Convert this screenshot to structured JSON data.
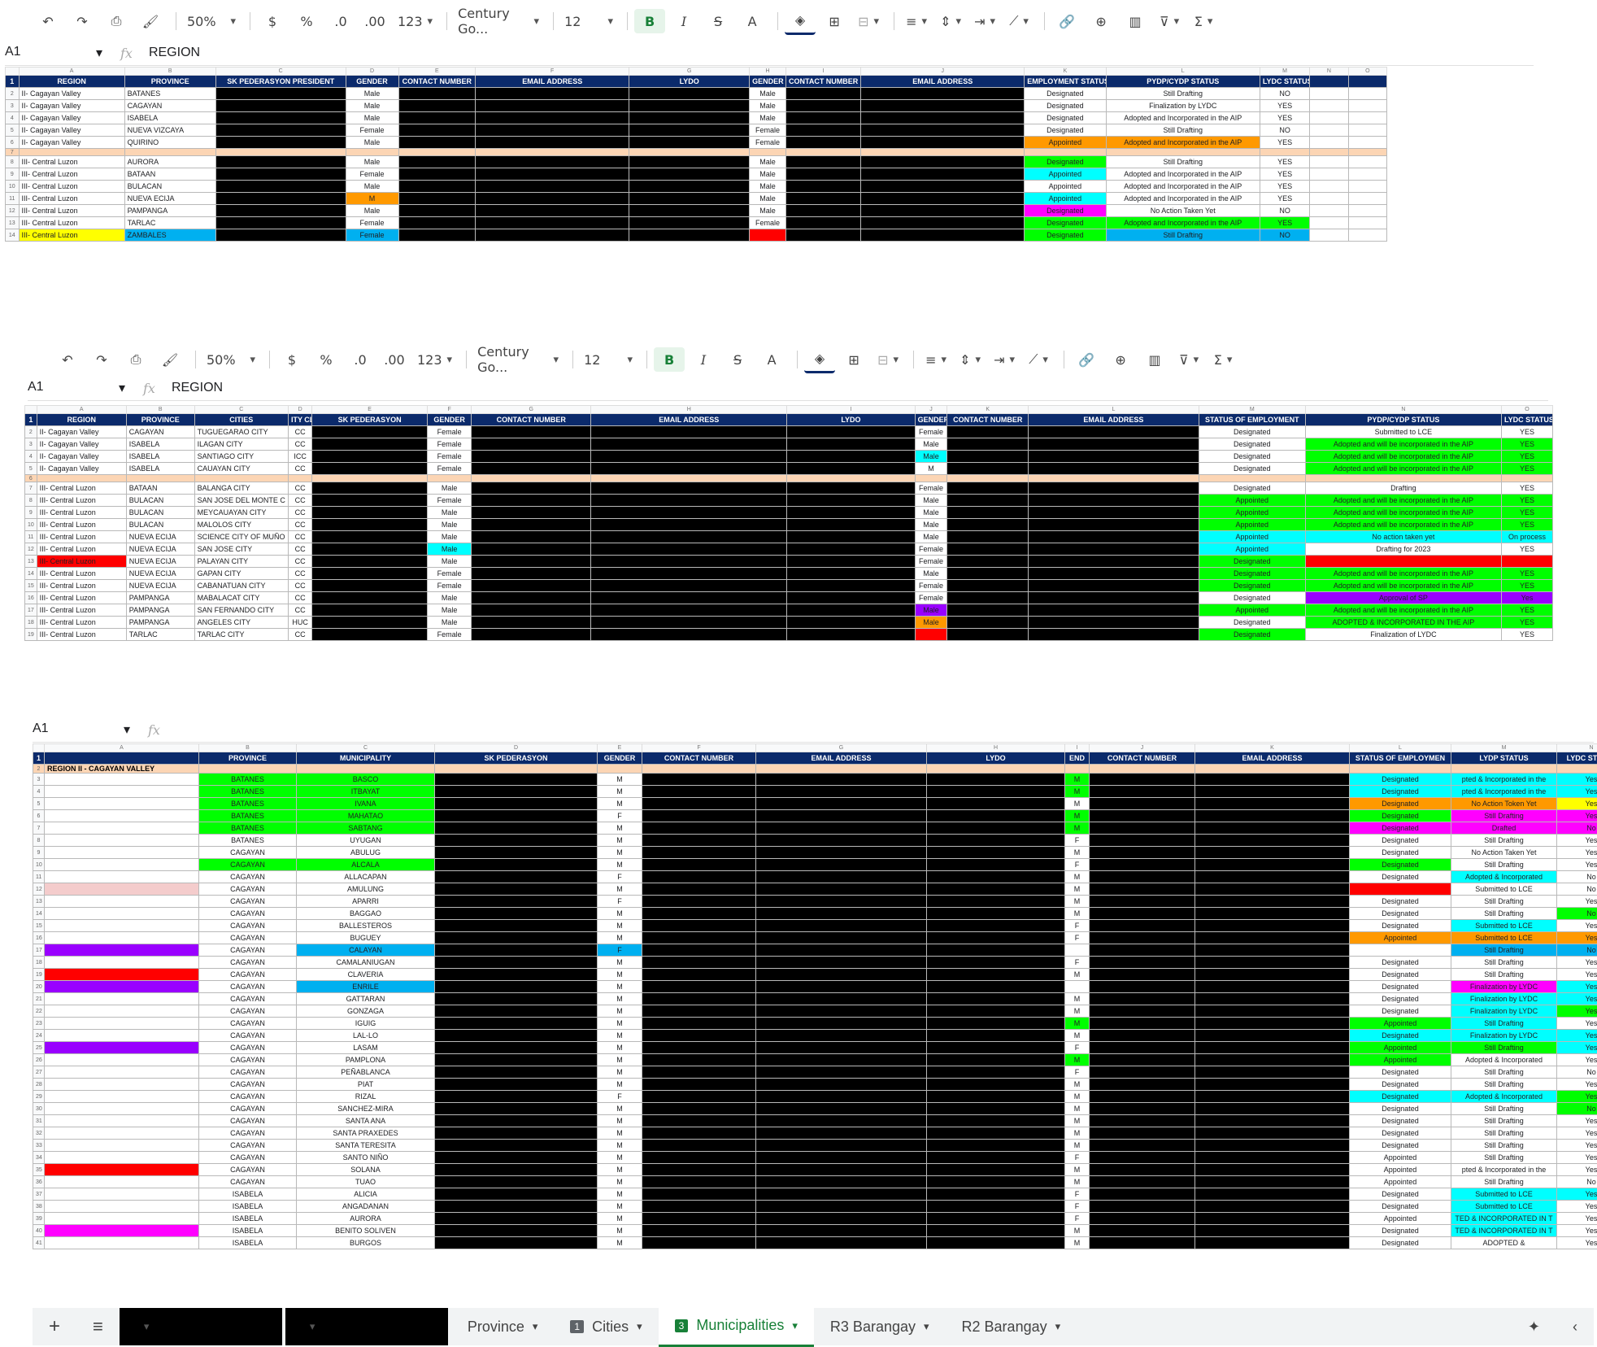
{
  "toolbar": {
    "zoom": "50%",
    "currency": "$",
    "percent": "%",
    "dec_less": ".0",
    "dec_more": ".00",
    "number_format": "123",
    "font": "Century Go...",
    "font_size": "12",
    "bold": "B",
    "italic": "I",
    "strike": "S",
    "text_color": "A"
  },
  "formula_bar": {
    "cell": "A1",
    "fx": "fx",
    "value": "REGION"
  },
  "formula_bar3": {
    "cell": "A1",
    "fx": "fx",
    "value": ""
  },
  "sheet1": {
    "cols": [
      "A",
      "B",
      "C",
      "D",
      "E",
      "F",
      "G",
      "H",
      "I",
      "J",
      "K",
      "L",
      "M",
      "N",
      "O"
    ],
    "headers": [
      "REGION",
      "PROVINCE",
      "SK PEDERASYON PRESIDENT",
      "GENDER",
      "CONTACT NUMBER",
      "EMAIL ADDRESS",
      "LYDO",
      "GENDER",
      "CONTACT NUMBER",
      "EMAIL ADDRESS",
      "EMPLOYMENT STATUS",
      "PYDP/CYDP STATUS",
      "LYDC STATUS"
    ],
    "rows": [
      {
        "n": "2",
        "region": "II- Cagayan Valley",
        "province": "BATANES",
        "g1": "Male",
        "g2": "Male",
        "emp": "Designated",
        "pydp": "Still Drafting",
        "lydc": "NO"
      },
      {
        "n": "3",
        "region": "II- Cagayan Valley",
        "province": "CAGAYAN",
        "g1": "Male",
        "g2": "Male",
        "emp": "Designated",
        "pydp": "Finalization by LYDC",
        "lydc": "YES"
      },
      {
        "n": "4",
        "region": "II- Cagayan Valley",
        "province": "ISABELA",
        "g1": "Male",
        "g2": "Male",
        "emp": "Designated",
        "pydp": "Adopted and Incorporated in the AIP",
        "lydc": "YES"
      },
      {
        "n": "5",
        "region": "II- Cagayan Valley",
        "province": "NUEVA VIZCAYA",
        "g1": "Female",
        "g2": "Female",
        "emp": "Designated",
        "pydp": "Still Drafting",
        "lydc": "NO"
      },
      {
        "n": "6",
        "region": "II- Cagayan Valley",
        "province": "QUIRINO",
        "g1": "Male",
        "g2": "Female",
        "emp": "Appointed",
        "pydp": "Adopted and Incorporated in the AIP",
        "lydc": "YES"
      },
      {
        "n": "8",
        "region": "III- Central Luzon",
        "province": "AURORA",
        "g1": "Male",
        "g2": "Male",
        "emp": "Designated",
        "pydp": "Still Drafting",
        "lydc": "YES"
      },
      {
        "n": "9",
        "region": "III- Central Luzon",
        "province": "BATAAN",
        "g1": "Female",
        "g2": "Male",
        "emp": "Appointed",
        "pydp": "Adopted and Incorporated in the AIP",
        "lydc": "YES"
      },
      {
        "n": "10",
        "region": "III- Central Luzon",
        "province": "BULACAN",
        "g1": "Male",
        "g2": "Male",
        "emp": "Appointed",
        "pydp": "Adopted and Incorporated in the AIP",
        "lydc": "YES"
      },
      {
        "n": "11",
        "region": "III- Central Luzon",
        "province": "NUEVA ECIJA",
        "g1": "M",
        "g2": "Male",
        "emp": "Appointed",
        "pydp": "Adopted and Incorporated in the AIP",
        "lydc": "YES"
      },
      {
        "n": "12",
        "region": "III- Central Luzon",
        "province": "PAMPANGA",
        "g1": "Male",
        "g2": "Male",
        "emp": "Designated",
        "pydp": "No Action Taken Yet",
        "lydc": "NO"
      },
      {
        "n": "13",
        "region": "III- Central Luzon",
        "province": "TARLAC",
        "g1": "Female",
        "g2": "Female",
        "emp": "Designated",
        "pydp": "Adopted and Incorporated in the AIP",
        "lydc": "YES"
      },
      {
        "n": "14",
        "region": "III- Central Luzon",
        "province": "ZAMBALES",
        "g1": "Female",
        "g2": "",
        "emp": "Designated",
        "pydp": "Still Drafting",
        "lydc": "NO"
      }
    ]
  },
  "sheet2": {
    "cols": [
      "A",
      "B",
      "C",
      "D",
      "E",
      "F",
      "G",
      "H",
      "I",
      "J",
      "K",
      "L",
      "M",
      "N",
      "O"
    ],
    "headers": [
      "REGION",
      "PROVINCE",
      "CITIES",
      "ITY CLAS",
      "SK PEDERASYON",
      "GENDER",
      "CONTACT NUMBER",
      "EMAIL ADDRESS",
      "LYDO",
      "GENDER",
      "CONTACT NUMBER",
      "EMAIL ADDRESS",
      "STATUS OF EMPLOYMENT",
      "PYDP/CYDP STATUS",
      "LYDC STATUS"
    ],
    "rows": [
      {
        "n": "2",
        "region": "II- Cagayan Valley",
        "province": "CAGAYAN",
        "city": "TUGUEGARAO CITY",
        "cls": "CC",
        "g1": "Female",
        "g2": "Female",
        "emp": "Designated",
        "pydp": "Submitted to LCE",
        "lydc": "YES"
      },
      {
        "n": "3",
        "region": "II- Cagayan Valley",
        "province": "ISABELA",
        "city": "ILAGAN CITY",
        "cls": "CC",
        "g1": "Female",
        "g2": "Male",
        "emp": "Designated",
        "pydp": "Adopted and will be incorporated in the AIP",
        "lydc": "YES"
      },
      {
        "n": "4",
        "region": "II- Cagayan Valley",
        "province": "ISABELA",
        "city": "SANTIAGO CITY",
        "cls": "ICC",
        "g1": "Female",
        "g2": "Male",
        "emp": "Designated",
        "pydp": "Adopted and will be incorporated in the AIP",
        "lydc": "YES"
      },
      {
        "n": "5",
        "region": "II- Cagayan Valley",
        "province": "ISABELA",
        "city": "CAUAYAN CITY",
        "cls": "CC",
        "g1": "Female",
        "g2": "M",
        "emp": "Designated",
        "pydp": "Adopted and will be incorporated in the AIP",
        "lydc": "YES"
      },
      {
        "n": "7",
        "region": "III- Central Luzon",
        "province": "BATAAN",
        "city": "BALANGA CITY",
        "cls": "CC",
        "g1": "Male",
        "g2": "Female",
        "emp": "Designated",
        "pydp": "Drafting",
        "lydc": "YES"
      },
      {
        "n": "8",
        "region": "III- Central Luzon",
        "province": "BULACAN",
        "city": "SAN JOSE DEL MONTE C",
        "cls": "CC",
        "g1": "Female",
        "g2": "Male",
        "emp": "Appointed",
        "pydp": "Adopted and will be incorporated in the AIP",
        "lydc": "YES"
      },
      {
        "n": "9",
        "region": "III- Central Luzon",
        "province": "BULACAN",
        "city": "MEYCAUAYAN CITY",
        "cls": "CC",
        "g1": "Male",
        "g2": "Male",
        "emp": "Appointed",
        "pydp": "Adopted and will be incorporated in the AIP",
        "lydc": "YES"
      },
      {
        "n": "10",
        "region": "III- Central Luzon",
        "province": "BULACAN",
        "city": "MALOLOS CITY",
        "cls": "CC",
        "g1": "Male",
        "g2": "Male",
        "emp": "Appointed",
        "pydp": "Adopted and will be incorporated in the AIP",
        "lydc": "YES"
      },
      {
        "n": "11",
        "region": "III- Central Luzon",
        "province": "NUEVA ECIJA",
        "city": "SCIENCE CITY OF MUÑO",
        "cls": "CC",
        "g1": "Male",
        "g2": "Male",
        "emp": "Appointed",
        "pydp": "No action taken yet",
        "lydc": "On process"
      },
      {
        "n": "12",
        "region": "III- Central Luzon",
        "province": "NUEVA ECIJA",
        "city": "SAN JOSE CITY",
        "cls": "CC",
        "g1": "Male",
        "g2": "Female",
        "emp": "Appointed",
        "pydp": "Drafting for 2023",
        "lydc": "YES"
      },
      {
        "n": "13",
        "region": "III- Central Luzon",
        "province": "NUEVA ECIJA",
        "city": "PALAYAN CITY",
        "cls": "CC",
        "g1": "Male",
        "g2": "Female",
        "emp": "Designated",
        "pydp": "",
        "lydc": ""
      },
      {
        "n": "14",
        "region": "III- Central Luzon",
        "province": "NUEVA ECIJA",
        "city": "GAPAN CITY",
        "cls": "CC",
        "g1": "Female",
        "g2": "Male",
        "emp": "Designated",
        "pydp": "Adopted and will be incorporated in the AIP",
        "lydc": "YES"
      },
      {
        "n": "15",
        "region": "III- Central Luzon",
        "province": "NUEVA ECIJA",
        "city": "CABANATUAN CITY",
        "cls": "CC",
        "g1": "Female",
        "g2": "Female",
        "emp": "Designated",
        "pydp": "Adopted and will be incorporated in the AIP",
        "lydc": "YES"
      },
      {
        "n": "16",
        "region": "III- Central Luzon",
        "province": "PAMPANGA",
        "city": "MABALACAT CITY",
        "cls": "CC",
        "g1": "Male",
        "g2": "Female",
        "emp": "Designated",
        "pydp": "Approval of SP",
        "lydc": "Yes"
      },
      {
        "n": "17",
        "region": "III- Central Luzon",
        "province": "PAMPANGA",
        "city": "SAN FERNANDO CITY",
        "cls": "CC",
        "g1": "Male",
        "g2": "Male",
        "emp": "Appointed",
        "pydp": "Adopted and will be incorporated in the AIP",
        "lydc": "YES"
      },
      {
        "n": "18",
        "region": "III- Central Luzon",
        "province": "PAMPANGA",
        "city": "ANGELES CITY",
        "cls": "HUC",
        "g1": "Male",
        "g2": "Male",
        "emp": "Designated",
        "pydp": "ADOPTED & INCORPORATED IN THE AIP",
        "lydc": "YES"
      },
      {
        "n": "19",
        "region": "III- Central Luzon",
        "province": "TARLAC",
        "city": "TARLAC CITY",
        "cls": "CC",
        "g1": "Female",
        "g2": "",
        "emp": "Designated",
        "pydp": "Finalization of LYDC",
        "lydc": "YES"
      }
    ]
  },
  "sheet3": {
    "cols": [
      "A",
      "B",
      "C",
      "D",
      "E",
      "F",
      "G",
      "H",
      "I",
      "J",
      "K",
      "L",
      "M",
      "N"
    ],
    "headers": [
      "",
      "PROVINCE",
      "MUNICIPALITY",
      "SK PEDERASYON",
      "GENDER",
      "CONTACT NUMBER",
      "EMAIL ADDRESS",
      "LYDO",
      "END",
      "CONTACT NUMBER",
      "EMAIL ADDRESS",
      "STATUS OF EMPLOYMEN",
      "LYDP STATUS",
      "LYDC STATUS"
    ],
    "region_label": "REGION II - CAGAYAN VALLEY",
    "rows": [
      {
        "n": "3",
        "p": "BATANES",
        "m": "BASCO",
        "g1": "M",
        "g2": "M",
        "emp": "Designated",
        "lydp": "pted & Incorporated in the",
        "lydc": "Yes"
      },
      {
        "n": "4",
        "p": "BATANES",
        "m": "ITBAYAT",
        "g1": "M",
        "g2": "M",
        "emp": "Designated",
        "lydp": "pted & Incorporated in the",
        "lydc": "Yes"
      },
      {
        "n": "5",
        "p": "BATANES",
        "m": "IVANA",
        "g1": "M",
        "g2": "M",
        "emp": "Designated",
        "lydp": "No Action Token Yet",
        "lydc": "Yes"
      },
      {
        "n": "6",
        "p": "BATANES",
        "m": "MAHATAO",
        "g1": "F",
        "g2": "M",
        "emp": "Designated",
        "lydp": "Still Drafting",
        "lydc": "Yes"
      },
      {
        "n": "7",
        "p": "BATANES",
        "m": "SABTANG",
        "g1": "M",
        "g2": "M",
        "emp": "Designated",
        "lydp": "Drafted",
        "lydc": "No"
      },
      {
        "n": "8",
        "p": "BATANES",
        "m": "UYUGAN",
        "g1": "M",
        "g2": "F",
        "emp": "Designated",
        "lydp": "Still Drafting",
        "lydc": "Yes"
      },
      {
        "n": "9",
        "p": "CAGAYAN",
        "m": "ABULUG",
        "g1": "M",
        "g2": "M",
        "emp": "Designated",
        "lydp": "No Action Taken Yet",
        "lydc": "Yes"
      },
      {
        "n": "10",
        "p": "CAGAYAN",
        "m": "ALCALA",
        "g1": "M",
        "g2": "F",
        "emp": "Designated",
        "lydp": "Still Drafting",
        "lydc": "Yes"
      },
      {
        "n": "11",
        "p": "CAGAYAN",
        "m": "ALLACAPAN",
        "g1": "F",
        "g2": "M",
        "emp": "Designated",
        "lydp": "Adopted & Incorporated",
        "lydc": "No"
      },
      {
        "n": "12",
        "p": "CAGAYAN",
        "m": "AMULUNG",
        "g1": "M",
        "g2": "M",
        "emp": "",
        "lydp": "Submitted to LCE",
        "lydc": "No"
      },
      {
        "n": "13",
        "p": "CAGAYAN",
        "m": "APARRI",
        "g1": "F",
        "g2": "M",
        "emp": "Designated",
        "lydp": "Still Drafting",
        "lydc": "Yes"
      },
      {
        "n": "14",
        "p": "CAGAYAN",
        "m": "BAGGAO",
        "g1": "M",
        "g2": "M",
        "emp": "Designated",
        "lydp": "Still Drafting",
        "lydc": "No"
      },
      {
        "n": "15",
        "p": "CAGAYAN",
        "m": "BALLESTEROS",
        "g1": "M",
        "g2": "F",
        "emp": "Designated",
        "lydp": "Submitted to LCE",
        "lydc": "Yes"
      },
      {
        "n": "16",
        "p": "CAGAYAN",
        "m": "BUGUEY",
        "g1": "M",
        "g2": "F",
        "emp": "Appointed",
        "lydp": "Submitted to LCE",
        "lydc": "Yes"
      },
      {
        "n": "17",
        "p": "CAGAYAN",
        "m": "CALAYAN",
        "g1": "F",
        "g2": "",
        "emp": "",
        "lydp": "Still Drafting",
        "lydc": "No"
      },
      {
        "n": "18",
        "p": "CAGAYAN",
        "m": "CAMALANIUGAN",
        "g1": "M",
        "g2": "F",
        "emp": "Designated",
        "lydp": "Still Drafting",
        "lydc": "Yes"
      },
      {
        "n": "19",
        "p": "CAGAYAN",
        "m": "CLAVERIA",
        "g1": "M",
        "g2": "M",
        "emp": "Designated",
        "lydp": "Still Drafting",
        "lydc": "Yes"
      },
      {
        "n": "20",
        "p": "CAGAYAN",
        "m": "ENRILE",
        "g1": "M",
        "g2": "",
        "emp": "Designated",
        "lydp": "Finalization by LYDC",
        "lydc": "Yes"
      },
      {
        "n": "21",
        "p": "CAGAYAN",
        "m": "GATTARAN",
        "g1": "M",
        "g2": "M",
        "emp": "Designated",
        "lydp": "Finalization by LYDC",
        "lydc": "Yes"
      },
      {
        "n": "22",
        "p": "CAGAYAN",
        "m": "GONZAGA",
        "g1": "M",
        "g2": "M",
        "emp": "Designated",
        "lydp": "Finalization by LYDC",
        "lydc": "Yes"
      },
      {
        "n": "23",
        "p": "CAGAYAN",
        "m": "IGUIG",
        "g1": "M",
        "g2": "M",
        "emp": "Appointed",
        "lydp": "Still Drafting",
        "lydc": "Yes"
      },
      {
        "n": "24",
        "p": "CAGAYAN",
        "m": "LAL-LO",
        "g1": "M",
        "g2": "M",
        "emp": "Designated",
        "lydp": "Finalization by LYDC",
        "lydc": "Yes"
      },
      {
        "n": "25",
        "p": "CAGAYAN",
        "m": "LASAM",
        "g1": "M",
        "g2": "F",
        "emp": "Appointed",
        "lydp": "Still Drafting",
        "lydc": "Yes"
      },
      {
        "n": "26",
        "p": "CAGAYAN",
        "m": "PAMPLONA",
        "g1": "M",
        "g2": "M",
        "emp": "Appointed",
        "lydp": "Adopted & Incorporated",
        "lydc": "Yes"
      },
      {
        "n": "27",
        "p": "CAGAYAN",
        "m": "PEÑABLANCA",
        "g1": "M",
        "g2": "F",
        "emp": "Designated",
        "lydp": "Still Drafting",
        "lydc": "No"
      },
      {
        "n": "28",
        "p": "CAGAYAN",
        "m": "PIAT",
        "g1": "M",
        "g2": "M",
        "emp": "Designated",
        "lydp": "Still Drafting",
        "lydc": "Yes"
      },
      {
        "n": "29",
        "p": "CAGAYAN",
        "m": "RIZAL",
        "g1": "F",
        "g2": "M",
        "emp": "Designated",
        "lydp": "Adopted & Incorporated",
        "lydc": "Yes"
      },
      {
        "n": "30",
        "p": "CAGAYAN",
        "m": "SANCHEZ-MIRA",
        "g1": "M",
        "g2": "M",
        "emp": "Designated",
        "lydp": "Still Drafting",
        "lydc": "No"
      },
      {
        "n": "31",
        "p": "CAGAYAN",
        "m": "SANTA ANA",
        "g1": "M",
        "g2": "M",
        "emp": "Designated",
        "lydp": "Still Drafting",
        "lydc": "Yes"
      },
      {
        "n": "32",
        "p": "CAGAYAN",
        "m": "SANTA PRAXEDES",
        "g1": "M",
        "g2": "M",
        "emp": "Designated",
        "lydp": "Still Drafting",
        "lydc": "Yes"
      },
      {
        "n": "33",
        "p": "CAGAYAN",
        "m": "SANTA TERESITA",
        "g1": "M",
        "g2": "M",
        "emp": "Designated",
        "lydp": "Still Drafting",
        "lydc": "Yes"
      },
      {
        "n": "34",
        "p": "CAGAYAN",
        "m": "SANTO NIÑO",
        "g1": "M",
        "g2": "F",
        "emp": "Appointed",
        "lydp": "Still Drafting",
        "lydc": "Yes"
      },
      {
        "n": "35",
        "p": "CAGAYAN",
        "m": "SOLANA",
        "g1": "M",
        "g2": "M",
        "emp": "Appointed",
        "lydp": "pted & Incorporated in the",
        "lydc": "Yes"
      },
      {
        "n": "36",
        "p": "CAGAYAN",
        "m": "TUAO",
        "g1": "M",
        "g2": "M",
        "emp": "Appointed",
        "lydp": "Still Drafting",
        "lydc": "No"
      },
      {
        "n": "37",
        "p": "ISABELA",
        "m": "ALICIA",
        "g1": "M",
        "g2": "F",
        "emp": "Designated",
        "lydp": "Submitted to LCE",
        "lydc": "Yes"
      },
      {
        "n": "38",
        "p": "ISABELA",
        "m": "ANGADANAN",
        "g1": "M",
        "g2": "F",
        "emp": "Designated",
        "lydp": "Submitted to LCE",
        "lydc": "Yes"
      },
      {
        "n": "39",
        "p": "ISABELA",
        "m": "AURORA",
        "g1": "M",
        "g2": "F",
        "emp": "Appointed",
        "lydp": "TED & INCORPORATED IN T",
        "lydc": "Yes"
      },
      {
        "n": "40",
        "p": "ISABELA",
        "m": "BENITO SOLIVEN",
        "g1": "M",
        "g2": "M",
        "emp": "Designated",
        "lydp": "TED & INCORPORATED IN T",
        "lydc": "Yes"
      },
      {
        "n": "41",
        "p": "ISABELA",
        "m": "BURGOS",
        "g1": "M",
        "g2": "M",
        "emp": "Designated",
        "lydp": "ADOPTED &",
        "lydc": "Yes"
      }
    ]
  },
  "tabs": [
    {
      "label": "",
      "num": "",
      "dark": true
    },
    {
      "label": "",
      "num": "",
      "dark": true
    },
    {
      "label": "Province",
      "num": ""
    },
    {
      "label": "Cities",
      "num": "1"
    },
    {
      "label": "Municipalities",
      "num": "3",
      "active": true
    },
    {
      "label": "R3 Barangay",
      "num": ""
    },
    {
      "label": "R2 Barangay",
      "num": ""
    }
  ],
  "tab_add": "+",
  "tab_list": "≡"
}
